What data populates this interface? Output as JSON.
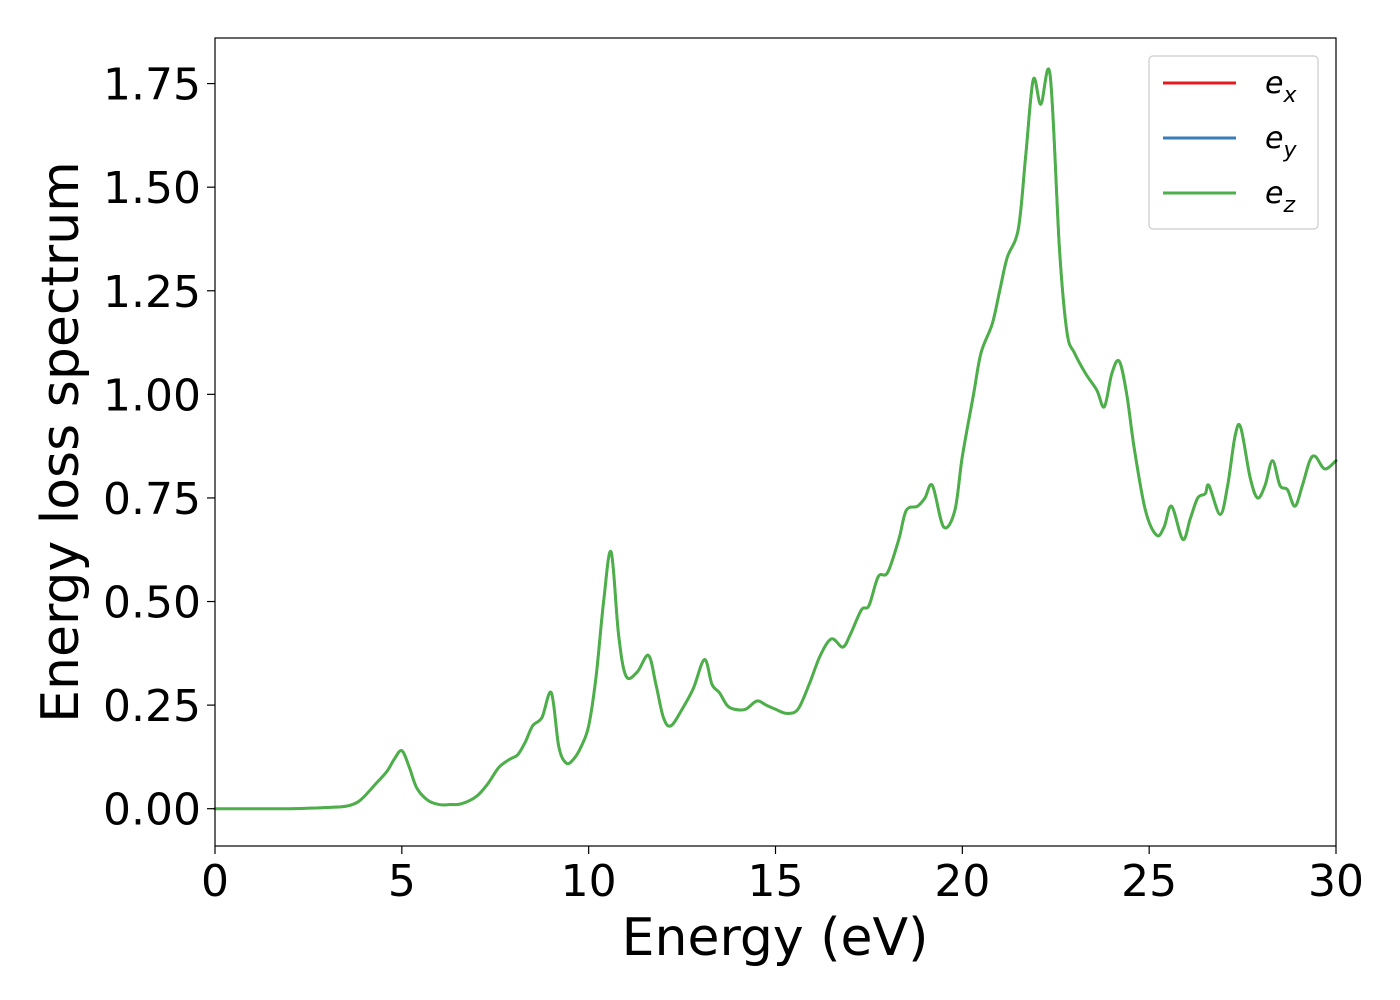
{
  "chart_data": {
    "type": "line",
    "title": "",
    "xlabel": "Energy (eV)",
    "ylabel": "Energy loss spectrum",
    "xlim": [
      0,
      30
    ],
    "ylim": [
      -0.09,
      1.86
    ],
    "xticks": [
      0,
      5,
      10,
      15,
      20,
      25,
      30
    ],
    "xtick_labels": [
      "0",
      "5",
      "10",
      "15",
      "20",
      "25",
      "30"
    ],
    "yticks": [
      0.0,
      0.25,
      0.5,
      0.75,
      1.0,
      1.25,
      1.5,
      1.75
    ],
    "ytick_labels": [
      "0.00",
      "0.25",
      "0.50",
      "0.75",
      "1.00",
      "1.25",
      "1.50",
      "1.75"
    ],
    "grid": false,
    "legend_position": "top-right",
    "series": [
      {
        "name": "e_x",
        "base": "e",
        "sub": "x",
        "color": "#e41a1c"
      },
      {
        "name": "e_y",
        "base": "e",
        "sub": "y",
        "color": "#377eb8"
      },
      {
        "name": "e_z",
        "base": "e",
        "sub": "z",
        "color": "#4daf4a"
      }
    ],
    "x": [
      0,
      1,
      2,
      3,
      3.5,
      3.8,
      4.0,
      4.3,
      4.6,
      4.8,
      5.0,
      5.2,
      5.4,
      5.7,
      6.0,
      6.3,
      6.6,
      7.0,
      7.3,
      7.6,
      7.9,
      8.1,
      8.3,
      8.5,
      8.75,
      9.0,
      9.2,
      9.4,
      9.6,
      9.8,
      10.0,
      10.2,
      10.4,
      10.6,
      10.8,
      11.0,
      11.3,
      11.6,
      11.8,
      12.0,
      12.2,
      12.5,
      12.8,
      13.1,
      13.3,
      13.5,
      13.7,
      13.9,
      14.2,
      14.5,
      14.75,
      15.0,
      15.3,
      15.6,
      15.9,
      16.2,
      16.5,
      16.8,
      17.0,
      17.3,
      17.5,
      17.75,
      18.0,
      18.3,
      18.5,
      18.8,
      19.0,
      19.2,
      19.5,
      19.8,
      20.0,
      20.3,
      20.5,
      20.8,
      21.0,
      21.2,
      21.5,
      21.7,
      21.9,
      22.1,
      22.35,
      22.6,
      22.8,
      23.0,
      23.3,
      23.6,
      23.8,
      24.0,
      24.2,
      24.4,
      24.6,
      24.9,
      25.2,
      25.4,
      25.6,
      25.9,
      26.1,
      26.3,
      26.5,
      26.6,
      26.9,
      27.1,
      27.3,
      27.45,
      27.7,
      27.9,
      28.1,
      28.3,
      28.5,
      28.7,
      28.9,
      29.1,
      29.3,
      29.45,
      29.7,
      30.0
    ],
    "y": [
      0.0,
      0.0,
      0.0,
      0.003,
      0.006,
      0.015,
      0.03,
      0.06,
      0.09,
      0.12,
      0.14,
      0.1,
      0.05,
      0.02,
      0.01,
      0.01,
      0.012,
      0.03,
      0.06,
      0.1,
      0.12,
      0.13,
      0.16,
      0.2,
      0.22,
      0.28,
      0.15,
      0.11,
      0.12,
      0.15,
      0.2,
      0.32,
      0.5,
      0.62,
      0.42,
      0.32,
      0.33,
      0.37,
      0.3,
      0.22,
      0.2,
      0.24,
      0.29,
      0.36,
      0.3,
      0.28,
      0.25,
      0.24,
      0.24,
      0.26,
      0.25,
      0.24,
      0.23,
      0.24,
      0.3,
      0.37,
      0.41,
      0.39,
      0.42,
      0.48,
      0.49,
      0.56,
      0.57,
      0.65,
      0.72,
      0.73,
      0.75,
      0.78,
      0.68,
      0.72,
      0.85,
      1.0,
      1.1,
      1.17,
      1.25,
      1.33,
      1.4,
      1.58,
      1.76,
      1.7,
      1.77,
      1.35,
      1.15,
      1.1,
      1.05,
      1.01,
      0.97,
      1.05,
      1.08,
      1.0,
      0.87,
      0.72,
      0.66,
      0.68,
      0.73,
      0.65,
      0.7,
      0.75,
      0.76,
      0.78,
      0.71,
      0.78,
      0.9,
      0.92,
      0.8,
      0.75,
      0.78,
      0.84,
      0.78,
      0.77,
      0.73,
      0.78,
      0.84,
      0.85,
      0.82,
      0.84
    ]
  }
}
